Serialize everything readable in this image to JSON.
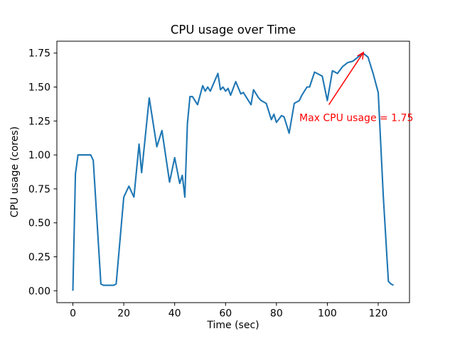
{
  "chart_data": {
    "type": "line",
    "title": "CPU usage over Time",
    "xlabel": "Time (sec)",
    "ylabel": "CPU usage (cores)",
    "grid": false,
    "legend": null,
    "background": "#ffffff",
    "line_color": "#1f77b4",
    "axis_color": "#000000",
    "xlim": [
      -6.3,
      132.3
    ],
    "ylim": [
      -0.0875,
      1.8375
    ],
    "x_ticks": {
      "values": [
        0,
        20,
        40,
        60,
        80,
        100,
        120
      ],
      "labels": [
        "0",
        "20",
        "40",
        "60",
        "80",
        "100",
        "120"
      ]
    },
    "y_ticks": {
      "values": [
        0.0,
        0.25,
        0.5,
        0.75,
        1.0,
        1.25,
        1.5,
        1.75
      ],
      "labels": [
        "0.00",
        "0.25",
        "0.50",
        "0.75",
        "1.00",
        "1.25",
        "1.50",
        "1.75"
      ]
    },
    "series": [
      {
        "name": "CPU usage",
        "color": "#1f77b4",
        "points": [
          [
            0,
            0.0
          ],
          [
            1,
            0.86
          ],
          [
            2,
            1.0
          ],
          [
            4,
            1.0
          ],
          [
            6,
            1.0
          ],
          [
            7,
            1.0
          ],
          [
            8,
            0.96
          ],
          [
            11,
            0.05
          ],
          [
            12,
            0.04
          ],
          [
            14,
            0.04
          ],
          [
            16,
            0.04
          ],
          [
            17,
            0.05
          ],
          [
            20,
            0.69
          ],
          [
            22,
            0.77
          ],
          [
            24,
            0.69
          ],
          [
            26,
            1.08
          ],
          [
            27,
            0.87
          ],
          [
            30,
            1.42
          ],
          [
            33,
            1.06
          ],
          [
            35,
            1.18
          ],
          [
            38,
            0.8
          ],
          [
            40,
            0.98
          ],
          [
            42,
            0.79
          ],
          [
            43,
            0.85
          ],
          [
            44,
            0.69
          ],
          [
            45,
            1.23
          ],
          [
            46,
            1.43
          ],
          [
            47,
            1.43
          ],
          [
            49,
            1.37
          ],
          [
            51,
            1.51
          ],
          [
            52,
            1.47
          ],
          [
            53,
            1.5
          ],
          [
            54,
            1.47
          ],
          [
            57,
            1.6
          ],
          [
            58,
            1.48
          ],
          [
            59,
            1.5
          ],
          [
            60,
            1.47
          ],
          [
            61,
            1.49
          ],
          [
            62,
            1.44
          ],
          [
            64,
            1.54
          ],
          [
            66,
            1.45
          ],
          [
            67,
            1.46
          ],
          [
            68,
            1.43
          ],
          [
            70,
            1.37
          ],
          [
            71,
            1.48
          ],
          [
            73,
            1.42
          ],
          [
            74,
            1.4
          ],
          [
            76,
            1.38
          ],
          [
            78,
            1.26
          ],
          [
            79,
            1.3
          ],
          [
            80,
            1.24
          ],
          [
            82,
            1.29
          ],
          [
            83,
            1.28
          ],
          [
            85,
            1.16
          ],
          [
            87,
            1.38
          ],
          [
            89,
            1.4
          ],
          [
            90,
            1.44
          ],
          [
            92,
            1.5
          ],
          [
            93,
            1.5
          ],
          [
            95,
            1.61
          ],
          [
            97,
            1.59
          ],
          [
            98,
            1.58
          ],
          [
            100,
            1.4
          ],
          [
            102,
            1.62
          ],
          [
            104,
            1.6
          ],
          [
            106,
            1.65
          ],
          [
            108,
            1.68
          ],
          [
            110,
            1.69
          ],
          [
            112,
            1.72
          ],
          [
            114,
            1.75
          ],
          [
            116,
            1.72
          ],
          [
            118,
            1.6
          ],
          [
            120,
            1.46
          ],
          [
            122,
            0.7
          ],
          [
            124,
            0.07
          ],
          [
            125,
            0.05
          ],
          [
            126,
            0.04
          ]
        ]
      }
    ],
    "annotation": {
      "text": "Max CPU usage = 1.75",
      "color": "#ff0000",
      "text_xy": [
        89,
        1.25
      ],
      "arrow_tail_xy": [
        100.6,
        1.37
      ],
      "arrow_tip_xy": [
        114.2,
        1.755
      ],
      "max_value": 1.75
    }
  }
}
